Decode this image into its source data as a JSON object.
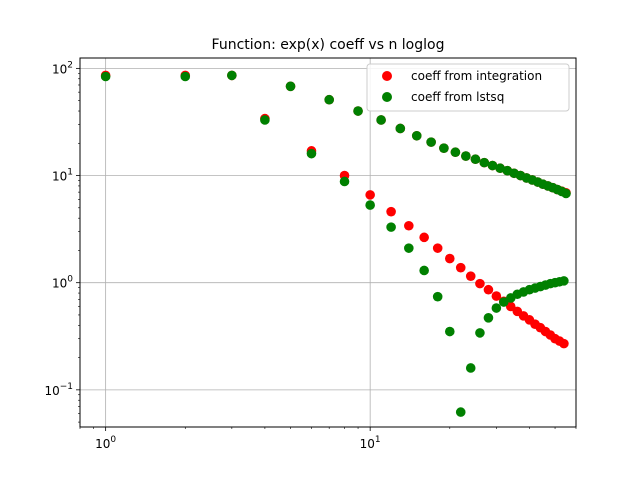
{
  "chart_data": {
    "type": "scatter",
    "title": "Function: exp(x) coeff vs n loglog",
    "xlabel": "",
    "ylabel": "",
    "xscale": "log",
    "yscale": "log",
    "xlim": [
      0.8,
      60
    ],
    "ylim": [
      0.045,
      125
    ],
    "grid": true,
    "legend_position": "top-right",
    "x_ticks": [
      {
        "value": 1,
        "base": "10",
        "exp": "0"
      },
      {
        "value": 10,
        "base": "10",
        "exp": "1"
      }
    ],
    "y_ticks": [
      {
        "value": 0.1,
        "base": "10",
        "exp": "−1"
      },
      {
        "value": 1,
        "base": "10",
        "exp": "0"
      },
      {
        "value": 10,
        "base": "10",
        "exp": "1"
      },
      {
        "value": 100,
        "base": "10",
        "exp": "2"
      }
    ],
    "series": [
      {
        "name": "coeff from integration",
        "color": "#ff0000",
        "points": [
          [
            1,
            86
          ],
          [
            2,
            86
          ],
          [
            3,
            86
          ],
          [
            4,
            34
          ],
          [
            5,
            68
          ],
          [
            6,
            17
          ],
          [
            7,
            51
          ],
          [
            8,
            10
          ],
          [
            9,
            40
          ],
          [
            10,
            6.6
          ],
          [
            11,
            33
          ],
          [
            12,
            4.6
          ],
          [
            13,
            27.5
          ],
          [
            14,
            3.4
          ],
          [
            15,
            23.5
          ],
          [
            16,
            2.65
          ],
          [
            17,
            20.5
          ],
          [
            18,
            2.1
          ],
          [
            19,
            18
          ],
          [
            20,
            1.68
          ],
          [
            21,
            16.5
          ],
          [
            22,
            1.38
          ],
          [
            23,
            15.2
          ],
          [
            24,
            1.15
          ],
          [
            25,
            14.2
          ],
          [
            26,
            0.98
          ],
          [
            27,
            13.2
          ],
          [
            28,
            0.86
          ],
          [
            29,
            12.4
          ],
          [
            30,
            0.75
          ],
          [
            31,
            11.7
          ],
          [
            32,
            0.67
          ],
          [
            33,
            11.1
          ],
          [
            34,
            0.6
          ],
          [
            35,
            10.5
          ],
          [
            36,
            0.54
          ],
          [
            37,
            10
          ],
          [
            38,
            0.49
          ],
          [
            39,
            9.5
          ],
          [
            40,
            0.45
          ],
          [
            41,
            9.1
          ],
          [
            42,
            0.41
          ],
          [
            43,
            8.7
          ],
          [
            44,
            0.38
          ],
          [
            45,
            8.3
          ],
          [
            46,
            0.35
          ],
          [
            47,
            8
          ],
          [
            48,
            0.325
          ],
          [
            49,
            7.7
          ],
          [
            50,
            0.3
          ],
          [
            51,
            7.4
          ],
          [
            52,
            0.285
          ],
          [
            53,
            7.15
          ],
          [
            54,
            0.27
          ],
          [
            55,
            6.9
          ]
        ]
      },
      {
        "name": "coeff from lstsq",
        "color": "#008000",
        "points": [
          [
            1,
            84
          ],
          [
            2,
            84
          ],
          [
            3,
            86
          ],
          [
            4,
            33
          ],
          [
            5,
            68
          ],
          [
            6,
            16
          ],
          [
            7,
            51
          ],
          [
            8,
            8.8
          ],
          [
            9,
            40
          ],
          [
            10,
            5.3
          ],
          [
            11,
            33
          ],
          [
            12,
            3.3
          ],
          [
            13,
            27.5
          ],
          [
            14,
            2.1
          ],
          [
            15,
            23.5
          ],
          [
            16,
            1.3
          ],
          [
            17,
            20.5
          ],
          [
            18,
            0.74
          ],
          [
            19,
            18
          ],
          [
            20,
            0.35
          ],
          [
            21,
            16.5
          ],
          [
            22,
            0.062
          ],
          [
            23,
            15.2
          ],
          [
            24,
            0.16
          ],
          [
            25,
            14.2
          ],
          [
            26,
            0.34
          ],
          [
            27,
            13.2
          ],
          [
            28,
            0.47
          ],
          [
            29,
            12.4
          ],
          [
            30,
            0.58
          ],
          [
            31,
            11.7
          ],
          [
            32,
            0.66
          ],
          [
            33,
            11.1
          ],
          [
            34,
            0.72
          ],
          [
            35,
            10.5
          ],
          [
            36,
            0.78
          ],
          [
            37,
            10
          ],
          [
            38,
            0.82
          ],
          [
            39,
            9.5
          ],
          [
            40,
            0.86
          ],
          [
            41,
            9.1
          ],
          [
            42,
            0.89
          ],
          [
            43,
            8.7
          ],
          [
            44,
            0.92
          ],
          [
            45,
            8.3
          ],
          [
            46,
            0.95
          ],
          [
            47,
            8
          ],
          [
            48,
            0.98
          ],
          [
            49,
            7.7
          ],
          [
            50,
            1.0
          ],
          [
            51,
            7.4
          ],
          [
            52,
            1.02
          ],
          [
            53,
            7.1
          ],
          [
            54,
            1.04
          ],
          [
            55,
            6.8
          ]
        ]
      }
    ]
  }
}
